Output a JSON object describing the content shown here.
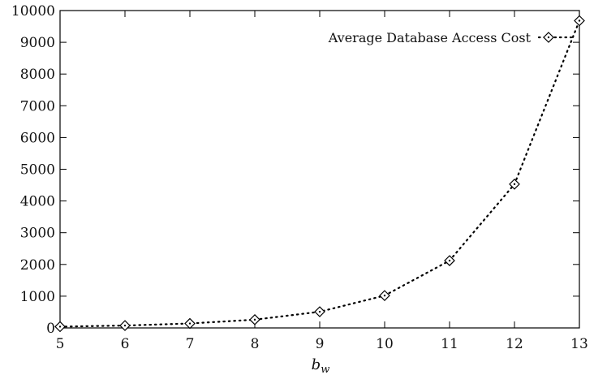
{
  "chart_data": {
    "type": "line",
    "title": "",
    "xlabel": "b",
    "xlabel_subscript": "w",
    "ylabel": "",
    "x": [
      5,
      6,
      7,
      8,
      9,
      10,
      11,
      12,
      13
    ],
    "xlim": [
      5,
      13
    ],
    "ylim": [
      0,
      10000
    ],
    "xticks": [
      "5",
      "6",
      "7",
      "8",
      "9",
      "10",
      "11",
      "12",
      "13"
    ],
    "yticks": [
      "0",
      "1000",
      "2000",
      "3000",
      "4000",
      "5000",
      "6000",
      "7000",
      "8000",
      "9000",
      "10000"
    ],
    "grid": false,
    "legend_position": "top-right",
    "series": [
      {
        "name": "Average Database Access Cost",
        "marker": "diamond",
        "line_style": "dotted",
        "color": "#000000",
        "values": [
          40,
          75,
          140,
          260,
          510,
          1020,
          2120,
          4530,
          9680
        ]
      }
    ]
  }
}
